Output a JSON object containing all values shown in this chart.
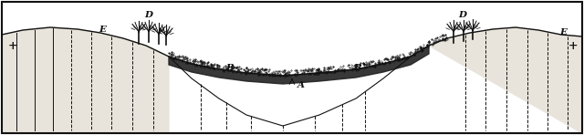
{
  "fig_width": 6.4,
  "fig_height": 1.48,
  "dpi": 100,
  "bg_color": "#ffffff",
  "border_color": "#111111",
  "label_A": "A",
  "label_B_left": "B",
  "label_B_right": "B",
  "label_D_left": "D",
  "label_D_right": "D",
  "label_E_left": "E",
  "label_E_right": "E",
  "label_plus_left": "+",
  "label_plus_right": "+",
  "line_color": "#111111",
  "hatch_line_color": "#333333",
  "x_surface": [
    2,
    25,
    55,
    85,
    110,
    135,
    160,
    185,
    210,
    240,
    270,
    310,
    350,
    390,
    420,
    450,
    470,
    490,
    515,
    540,
    565,
    590,
    615,
    638
  ],
  "y_surface": [
    110,
    115,
    118,
    116,
    112,
    106,
    98,
    86,
    78,
    72,
    68,
    65,
    68,
    72,
    78,
    86,
    98,
    106,
    112,
    116,
    118,
    115,
    110,
    108
  ],
  "x_lake_left": [
    185,
    210,
    240,
    270,
    310
  ],
  "y_lake_left": [
    86,
    62,
    40,
    22,
    10
  ],
  "x_lake_right": [
    310,
    350,
    390,
    420,
    450
  ],
  "y_lake_right": [
    10,
    22,
    40,
    62,
    86
  ],
  "peat_thickness": 9
}
